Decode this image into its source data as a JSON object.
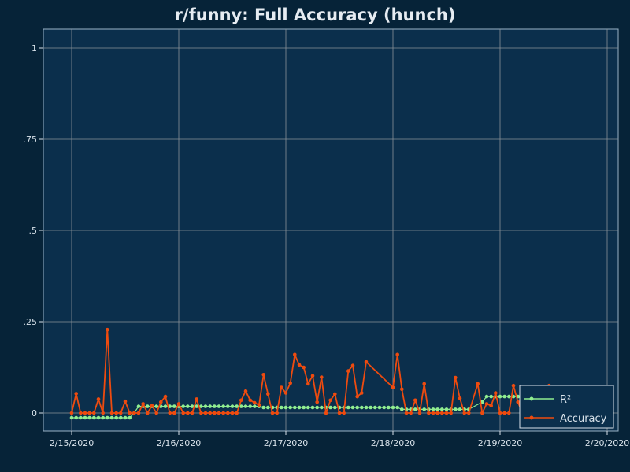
{
  "chart_data": {
    "type": "line",
    "title": "r/funny: Full Accuracy (hunch)",
    "xlabel": "",
    "ylabel": "",
    "xlim": [
      "2020-02-15",
      "2020-02-20"
    ],
    "ylim": [
      0,
      1
    ],
    "x_ticks": [
      {
        "value": "2020-02-15",
        "label": "2/15/2020"
      },
      {
        "value": "2020-02-16",
        "label": "2/16/2020"
      },
      {
        "value": "2020-02-17",
        "label": "2/17/2020"
      },
      {
        "value": "2020-02-18",
        "label": "2/18/2020"
      },
      {
        "value": "2020-02-19",
        "label": "2/19/2020"
      },
      {
        "value": "2020-02-20",
        "label": "2/20/2020"
      }
    ],
    "y_ticks": [
      {
        "value": 0,
        "label": "0"
      },
      {
        "value": 0.25,
        "label": ".25"
      },
      {
        "value": 0.5,
        "label": ".5"
      },
      {
        "value": 0.75,
        "label": ".75"
      },
      {
        "value": 1,
        "label": "1"
      }
    ],
    "grid": true,
    "legend_position": "bottom-right",
    "series": [
      {
        "name": "R²",
        "color": "#90ee90",
        "points": [
          [
            "2020-02-15 00:00",
            -0.013
          ],
          [
            "2020-02-15 01:00",
            -0.013
          ],
          [
            "2020-02-15 02:00",
            -0.013
          ],
          [
            "2020-02-15 03:00",
            -0.013
          ],
          [
            "2020-02-15 04:00",
            -0.013
          ],
          [
            "2020-02-15 05:00",
            -0.013
          ],
          [
            "2020-02-15 06:00",
            -0.013
          ],
          [
            "2020-02-15 07:00",
            -0.013
          ],
          [
            "2020-02-15 08:00",
            -0.013
          ],
          [
            "2020-02-15 09:00",
            -0.013
          ],
          [
            "2020-02-15 10:00",
            -0.013
          ],
          [
            "2020-02-15 11:00",
            -0.013
          ],
          [
            "2020-02-15 12:00",
            -0.013
          ],
          [
            "2020-02-15 13:00",
            -0.013
          ],
          [
            "2020-02-15 14:00",
            0.0
          ],
          [
            "2020-02-15 15:00",
            0.018
          ],
          [
            "2020-02-15 16:00",
            0.018
          ],
          [
            "2020-02-15 17:00",
            0.018
          ],
          [
            "2020-02-15 18:00",
            0.018
          ],
          [
            "2020-02-15 19:00",
            0.018
          ],
          [
            "2020-02-15 20:00",
            0.018
          ],
          [
            "2020-02-15 21:00",
            0.018
          ],
          [
            "2020-02-15 22:00",
            0.018
          ],
          [
            "2020-02-15 23:00",
            0.018
          ],
          [
            "2020-02-16 00:00",
            0.018
          ],
          [
            "2020-02-16 01:00",
            0.018
          ],
          [
            "2020-02-16 02:00",
            0.018
          ],
          [
            "2020-02-16 03:00",
            0.018
          ],
          [
            "2020-02-16 04:00",
            0.018
          ],
          [
            "2020-02-16 05:00",
            0.018
          ],
          [
            "2020-02-16 06:00",
            0.018
          ],
          [
            "2020-02-16 07:00",
            0.018
          ],
          [
            "2020-02-16 08:00",
            0.018
          ],
          [
            "2020-02-16 09:00",
            0.018
          ],
          [
            "2020-02-16 10:00",
            0.018
          ],
          [
            "2020-02-16 11:00",
            0.018
          ],
          [
            "2020-02-16 12:00",
            0.018
          ],
          [
            "2020-02-16 13:00",
            0.018
          ],
          [
            "2020-02-16 14:00",
            0.018
          ],
          [
            "2020-02-16 15:00",
            0.018
          ],
          [
            "2020-02-16 16:00",
            0.018
          ],
          [
            "2020-02-16 17:00",
            0.018
          ],
          [
            "2020-02-16 18:00",
            0.018
          ],
          [
            "2020-02-16 19:00",
            0.015
          ],
          [
            "2020-02-16 20:00",
            0.015
          ],
          [
            "2020-02-16 21:00",
            0.015
          ],
          [
            "2020-02-16 22:00",
            0.015
          ],
          [
            "2020-02-16 23:00",
            0.015
          ],
          [
            "2020-02-17 00:00",
            0.015
          ],
          [
            "2020-02-17 01:00",
            0.015
          ],
          [
            "2020-02-17 02:00",
            0.015
          ],
          [
            "2020-02-17 03:00",
            0.015
          ],
          [
            "2020-02-17 04:00",
            0.015
          ],
          [
            "2020-02-17 05:00",
            0.015
          ],
          [
            "2020-02-17 06:00",
            0.015
          ],
          [
            "2020-02-17 07:00",
            0.015
          ],
          [
            "2020-02-17 08:00",
            0.015
          ],
          [
            "2020-02-17 09:00",
            0.015
          ],
          [
            "2020-02-17 10:00",
            0.015
          ],
          [
            "2020-02-17 11:00",
            0.015
          ],
          [
            "2020-02-17 12:00",
            0.015
          ],
          [
            "2020-02-17 13:00",
            0.015
          ],
          [
            "2020-02-17 14:00",
            0.015
          ],
          [
            "2020-02-17 15:00",
            0.015
          ],
          [
            "2020-02-17 16:00",
            0.015
          ],
          [
            "2020-02-17 17:00",
            0.015
          ],
          [
            "2020-02-17 18:00",
            0.015
          ],
          [
            "2020-02-17 19:00",
            0.015
          ],
          [
            "2020-02-17 20:00",
            0.015
          ],
          [
            "2020-02-17 21:00",
            0.015
          ],
          [
            "2020-02-17 22:00",
            0.015
          ],
          [
            "2020-02-17 23:00",
            0.015
          ],
          [
            "2020-02-18 00:00",
            0.015
          ],
          [
            "2020-02-18 01:00",
            0.015
          ],
          [
            "2020-02-18 02:00",
            0.01
          ],
          [
            "2020-02-18 03:00",
            0.01
          ],
          [
            "2020-02-18 04:00",
            0.01
          ],
          [
            "2020-02-18 05:00",
            0.01
          ],
          [
            "2020-02-18 06:00",
            0.01
          ],
          [
            "2020-02-18 07:00",
            0.01
          ],
          [
            "2020-02-18 08:00",
            0.01
          ],
          [
            "2020-02-18 09:00",
            0.01
          ],
          [
            "2020-02-18 10:00",
            0.01
          ],
          [
            "2020-02-18 11:00",
            0.01
          ],
          [
            "2020-02-18 12:00",
            0.01
          ],
          [
            "2020-02-18 13:00",
            0.01
          ],
          [
            "2020-02-18 14:00",
            0.01
          ],
          [
            "2020-02-18 15:00",
            0.01
          ],
          [
            "2020-02-18 16:00",
            0.01
          ],
          [
            "2020-02-18 17:00",
            0.01
          ],
          [
            "2020-02-18 20:00",
            0.03
          ],
          [
            "2020-02-18 21:00",
            0.045
          ],
          [
            "2020-02-18 22:00",
            0.045
          ],
          [
            "2020-02-18 23:00",
            0.045
          ],
          [
            "2020-02-19 00:00",
            0.045
          ],
          [
            "2020-02-19 01:00",
            0.045
          ],
          [
            "2020-02-19 02:00",
            0.045
          ],
          [
            "2020-02-19 03:00",
            0.045
          ],
          [
            "2020-02-19 04:00",
            0.045
          ],
          [
            "2020-02-19 05:00",
            0.045
          ],
          [
            "2020-02-19 06:00",
            0.045
          ],
          [
            "2020-02-19 07:00",
            0.045
          ],
          [
            "2020-02-19 08:00",
            0.045
          ]
        ]
      },
      {
        "name": "Accuracy",
        "color": "#ee4b0f",
        "points": [
          [
            "2020-02-15 00:00",
            0.0
          ],
          [
            "2020-02-15 01:00",
            0.053
          ],
          [
            "2020-02-15 02:00",
            0.0
          ],
          [
            "2020-02-15 03:00",
            0.0
          ],
          [
            "2020-02-15 04:00",
            0.0
          ],
          [
            "2020-02-15 05:00",
            0.0
          ],
          [
            "2020-02-15 06:00",
            0.038
          ],
          [
            "2020-02-15 07:00",
            0.0
          ],
          [
            "2020-02-15 08:00",
            0.228
          ],
          [
            "2020-02-15 09:00",
            0.0
          ],
          [
            "2020-02-15 10:00",
            0.0
          ],
          [
            "2020-02-15 11:00",
            0.0
          ],
          [
            "2020-02-15 12:00",
            0.032
          ],
          [
            "2020-02-15 13:00",
            0.0
          ],
          [
            "2020-02-15 14:00",
            0.0
          ],
          [
            "2020-02-15 15:00",
            0.0
          ],
          [
            "2020-02-15 16:00",
            0.025
          ],
          [
            "2020-02-15 17:00",
            0.0
          ],
          [
            "2020-02-15 18:00",
            0.02
          ],
          [
            "2020-02-15 19:00",
            0.0
          ],
          [
            "2020-02-15 20:00",
            0.03
          ],
          [
            "2020-02-15 21:00",
            0.045
          ],
          [
            "2020-02-15 22:00",
            0.0
          ],
          [
            "2020-02-15 23:00",
            0.0
          ],
          [
            "2020-02-16 00:00",
            0.025
          ],
          [
            "2020-02-16 01:00",
            0.0
          ],
          [
            "2020-02-16 02:00",
            0.0
          ],
          [
            "2020-02-16 03:00",
            0.0
          ],
          [
            "2020-02-16 04:00",
            0.038
          ],
          [
            "2020-02-16 05:00",
            0.0
          ],
          [
            "2020-02-16 06:00",
            0.0
          ],
          [
            "2020-02-16 07:00",
            0.0
          ],
          [
            "2020-02-16 08:00",
            0.0
          ],
          [
            "2020-02-16 09:00",
            0.0
          ],
          [
            "2020-02-16 10:00",
            0.0
          ],
          [
            "2020-02-16 11:00",
            0.0
          ],
          [
            "2020-02-16 12:00",
            0.0
          ],
          [
            "2020-02-16 13:00",
            0.0
          ],
          [
            "2020-02-16 14:00",
            0.035
          ],
          [
            "2020-02-16 15:00",
            0.06
          ],
          [
            "2020-02-16 16:00",
            0.035
          ],
          [
            "2020-02-16 17:00",
            0.028
          ],
          [
            "2020-02-16 18:00",
            0.022
          ],
          [
            "2020-02-16 19:00",
            0.105
          ],
          [
            "2020-02-16 20:00",
            0.052
          ],
          [
            "2020-02-16 21:00",
            0.0
          ],
          [
            "2020-02-16 22:00",
            0.0
          ],
          [
            "2020-02-16 23:00",
            0.07
          ],
          [
            "2020-02-17 00:00",
            0.055
          ],
          [
            "2020-02-17 01:00",
            0.082
          ],
          [
            "2020-02-17 02:00",
            0.16
          ],
          [
            "2020-02-17 03:00",
            0.132
          ],
          [
            "2020-02-17 04:00",
            0.125
          ],
          [
            "2020-02-17 05:00",
            0.08
          ],
          [
            "2020-02-17 06:00",
            0.102
          ],
          [
            "2020-02-17 07:00",
            0.03
          ],
          [
            "2020-02-17 08:00",
            0.098
          ],
          [
            "2020-02-17 09:00",
            0.0
          ],
          [
            "2020-02-17 10:00",
            0.035
          ],
          [
            "2020-02-17 11:00",
            0.052
          ],
          [
            "2020-02-17 12:00",
            0.0
          ],
          [
            "2020-02-17 13:00",
            0.0
          ],
          [
            "2020-02-17 14:00",
            0.115
          ],
          [
            "2020-02-17 15:00",
            0.13
          ],
          [
            "2020-02-17 16:00",
            0.045
          ],
          [
            "2020-02-17 17:00",
            0.055
          ],
          [
            "2020-02-17 18:00",
            0.14
          ],
          [
            "2020-02-18 00:00",
            0.07
          ],
          [
            "2020-02-18 01:00",
            0.16
          ],
          [
            "2020-02-18 02:00",
            0.065
          ],
          [
            "2020-02-18 03:00",
            0.0
          ],
          [
            "2020-02-18 04:00",
            0.0
          ],
          [
            "2020-02-18 05:00",
            0.035
          ],
          [
            "2020-02-18 06:00",
            0.0
          ],
          [
            "2020-02-18 07:00",
            0.08
          ],
          [
            "2020-02-18 08:00",
            0.0
          ],
          [
            "2020-02-18 09:00",
            0.0
          ],
          [
            "2020-02-18 10:00",
            0.0
          ],
          [
            "2020-02-18 11:00",
            0.0
          ],
          [
            "2020-02-18 12:00",
            0.0
          ],
          [
            "2020-02-18 13:00",
            0.0
          ],
          [
            "2020-02-18 14:00",
            0.097
          ],
          [
            "2020-02-18 15:00",
            0.04
          ],
          [
            "2020-02-18 16:00",
            0.0
          ],
          [
            "2020-02-18 17:00",
            0.0
          ],
          [
            "2020-02-18 19:00",
            0.08
          ],
          [
            "2020-02-18 20:00",
            0.0
          ],
          [
            "2020-02-18 21:00",
            0.025
          ],
          [
            "2020-02-18 22:00",
            0.02
          ],
          [
            "2020-02-18 23:00",
            0.055
          ],
          [
            "2020-02-19 00:00",
            0.0
          ],
          [
            "2020-02-19 01:00",
            0.0
          ],
          [
            "2020-02-19 02:00",
            0.0
          ],
          [
            "2020-02-19 03:00",
            0.075
          ],
          [
            "2020-02-19 04:00",
            0.03
          ],
          [
            "2020-02-19 05:00",
            0.0
          ],
          [
            "2020-02-19 06:00",
            0.0
          ],
          [
            "2020-02-19 08:00",
            0.0
          ],
          [
            "2020-02-19 09:00",
            0.0
          ],
          [
            "2020-02-19 10:00",
            0.045
          ],
          [
            "2020-02-19 11:00",
            0.075
          ]
        ]
      }
    ]
  }
}
